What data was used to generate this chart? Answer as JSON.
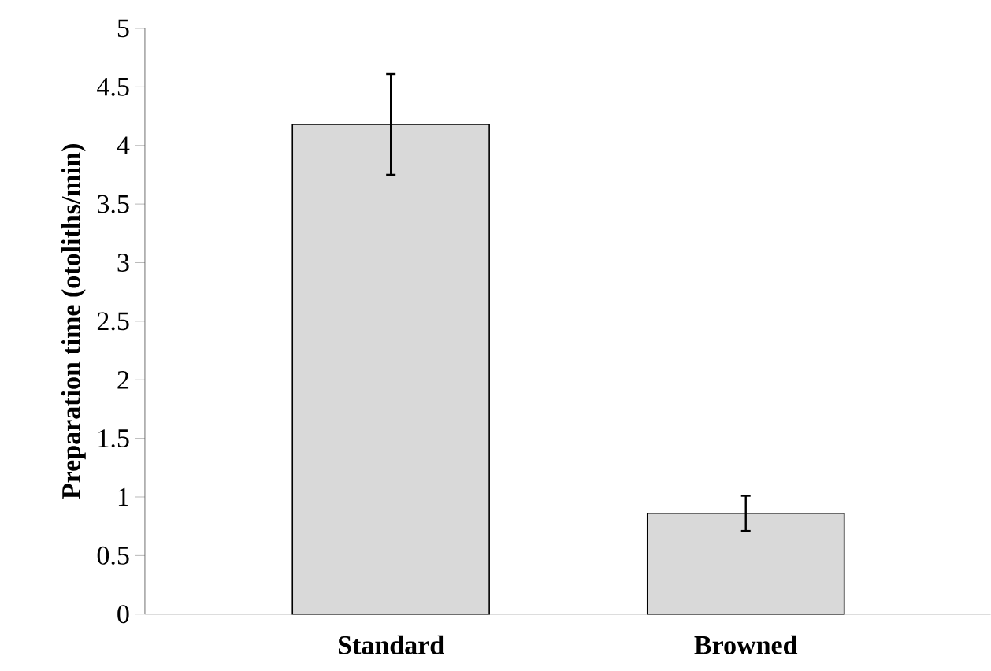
{
  "chart_data": {
    "type": "bar",
    "ylabel": "Preparation time (otoliths/min)",
    "categories": [
      "Standard",
      "Browned"
    ],
    "values": [
      4.18,
      0.86
    ],
    "errors": [
      [
        3.75,
        4.61
      ],
      [
        0.71,
        1.01
      ]
    ],
    "color": "#d9d9d9",
    "ylim": [
      0,
      5
    ],
    "yticks": [
      0,
      0.5,
      1,
      1.5,
      2,
      2.5,
      3,
      3.5,
      4,
      4.5,
      5
    ],
    "grid": false
  }
}
